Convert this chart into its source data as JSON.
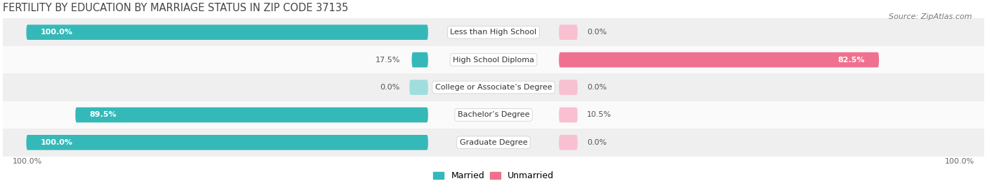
{
  "title": "FERTILITY BY EDUCATION BY MARRIAGE STATUS IN ZIP CODE 37135",
  "source": "Source: ZipAtlas.com",
  "categories": [
    "Less than High School",
    "High School Diploma",
    "College or Associate’s Degree",
    "Bachelor’s Degree",
    "Graduate Degree"
  ],
  "married_pct": [
    100.0,
    17.5,
    0.0,
    89.5,
    100.0
  ],
  "unmarried_pct": [
    0.0,
    82.5,
    0.0,
    10.5,
    0.0
  ],
  "married_color": "#35b8b8",
  "unmarried_color": "#f07090",
  "married_color_light": "#a0dede",
  "unmarried_color_light": "#f8c0d0",
  "row_colors": [
    "#efefef",
    "#fafafa",
    "#efefef",
    "#fafafa",
    "#efefef"
  ],
  "title_fontsize": 10.5,
  "source_fontsize": 8,
  "label_fontsize": 8,
  "category_fontsize": 8,
  "legend_fontsize": 9,
  "axis_label_fontsize": 8,
  "figsize": [
    14.06,
    2.69
  ],
  "dpi": 100,
  "x_left_label": "100.0%",
  "x_right_label": "100.0%"
}
